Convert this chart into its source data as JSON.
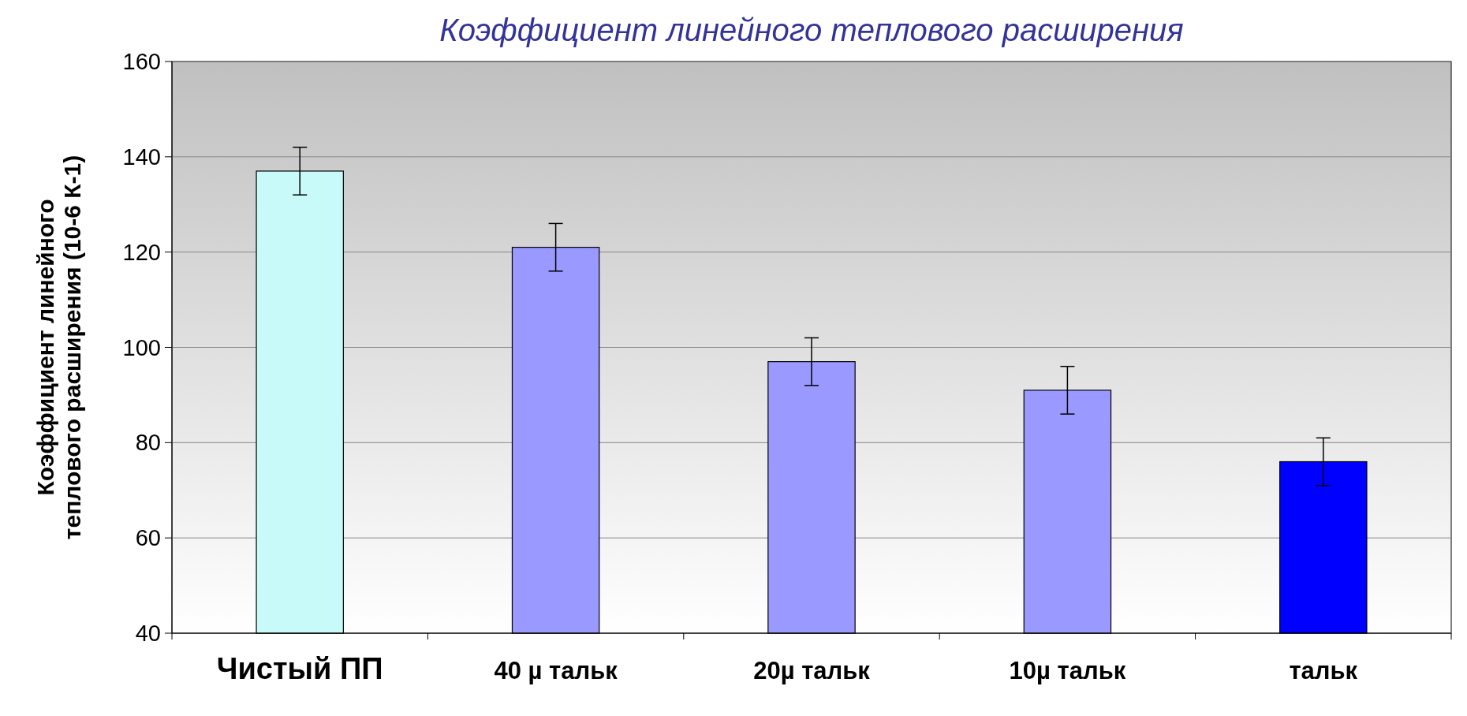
{
  "chart_data": {
    "type": "bar",
    "title": "Коэффициент линейного теплового расширения",
    "ylabel": "Коэффициент линейного\nтеплового расширения (10-6 К-1)",
    "categories": [
      "Чистый ПП",
      "40 µ тальк",
      "20µ тальк",
      "10µ тальк",
      "тальк"
    ],
    "values": [
      137,
      121,
      97,
      91,
      76
    ],
    "errors": [
      5,
      5,
      5,
      5,
      5
    ],
    "colors": [
      "#c8fafa",
      "#9999ff",
      "#9999ff",
      "#9999ff",
      "#0000ff"
    ],
    "ylim": [
      40,
      160
    ],
    "yticks": [
      40,
      60,
      80,
      100,
      120,
      140,
      160
    ],
    "grid": "y"
  }
}
